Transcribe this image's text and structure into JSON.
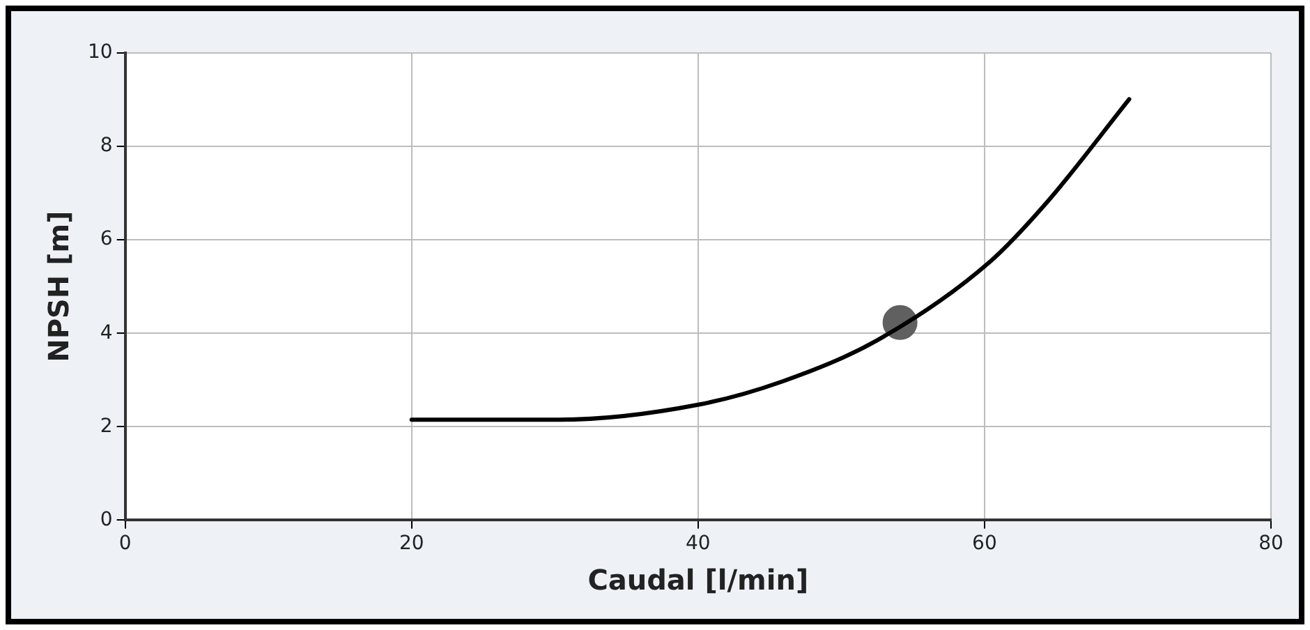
{
  "chart_data": {
    "type": "line",
    "xlabel": "Caudal [l/min]",
    "ylabel": "NPSH [m]",
    "xlim": [
      0,
      80
    ],
    "xticks": [
      0,
      20,
      40,
      60,
      80
    ],
    "ylim": [
      0,
      10
    ],
    "yticks": [
      0,
      2,
      4,
      6,
      8,
      10
    ],
    "grid": true,
    "legend": false,
    "line_style": "solid",
    "series": [
      {
        "marker": "none",
        "color": "#000000",
        "x": [
          20,
          30.3,
          40,
          45.9,
          52.5,
          60.3,
          64.4,
          70.1
        ],
        "values": [
          2.15,
          2.15,
          2.47,
          2.97,
          3.85,
          5.51,
          6.82,
          9.01
        ]
      },
      {
        "type": "scatter",
        "marker": "circle",
        "color": "#606060",
        "x": [
          54.1
        ],
        "values": [
          4.23
        ]
      }
    ]
  }
}
